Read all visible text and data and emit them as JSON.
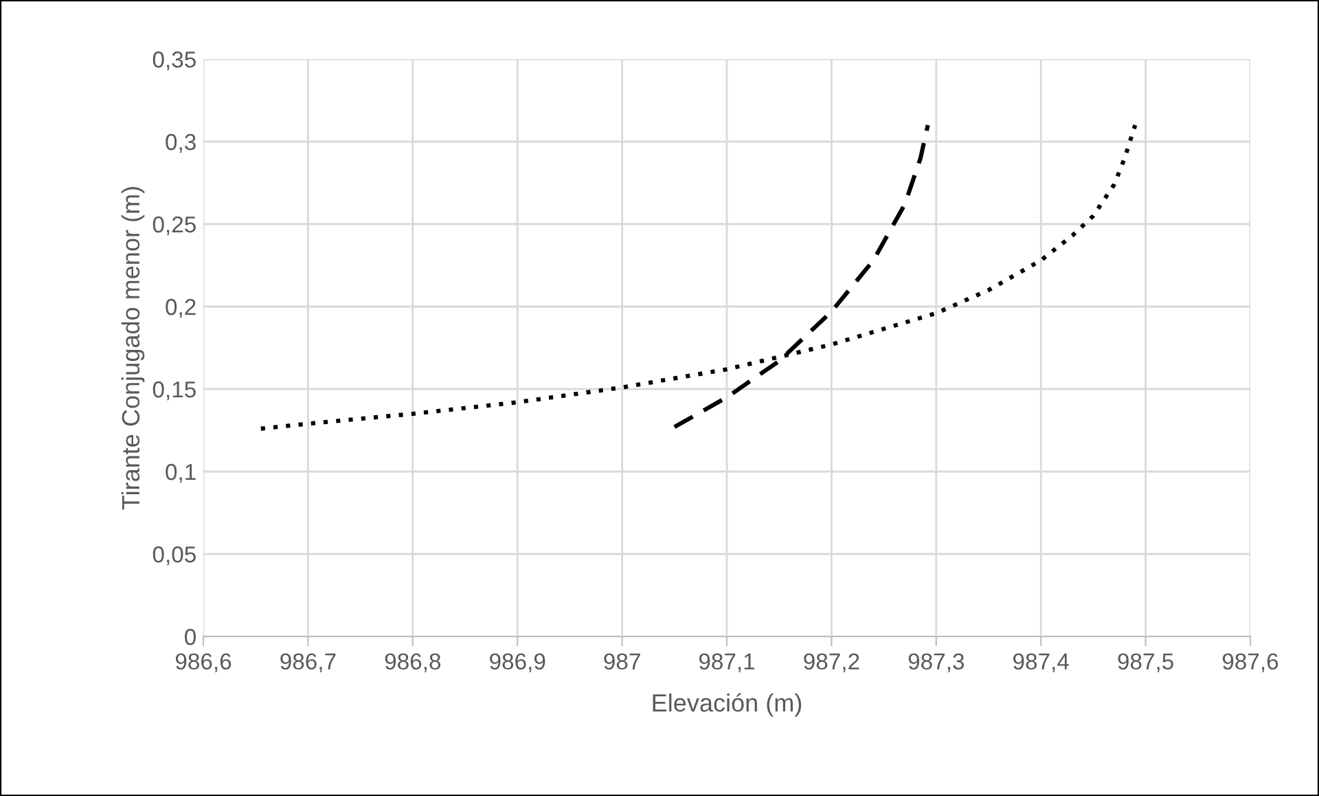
{
  "chart_data": {
    "type": "line",
    "xlabel": "Elevación (m)",
    "ylabel": "Tirante Conjugado menor (m)",
    "xlim": [
      986.6,
      987.6
    ],
    "xticks": [
      {
        "value": 986.6,
        "label": "986,6"
      },
      {
        "value": 986.7,
        "label": "986,7"
      },
      {
        "value": 986.8,
        "label": "986,8"
      },
      {
        "value": 986.9,
        "label": "986,9"
      },
      987,
      {
        "value": 987.1,
        "label": "987,1"
      },
      {
        "value": 987.2,
        "label": "987,2"
      },
      {
        "value": 987.3,
        "label": "987,3"
      },
      {
        "value": 987.4,
        "label": "987,4"
      },
      {
        "value": 987.5,
        "label": "987,5"
      },
      {
        "value": 987.6,
        "label": "987,6"
      }
    ],
    "ylim": [
      0,
      0.35
    ],
    "yticks": [
      0,
      {
        "value": 0.05,
        "label": "0,05"
      },
      {
        "value": 0.1,
        "label": "0,1"
      },
      {
        "value": 0.15,
        "label": "0,15"
      },
      {
        "value": 0.2,
        "label": "0,2"
      },
      {
        "value": 0.25,
        "label": "0,25"
      },
      {
        "value": 0.3,
        "label": "0,3"
      },
      {
        "value": 0.35,
        "label": "0,35"
      }
    ],
    "grid": true,
    "marker": "none",
    "series": [
      {
        "color": "#000000",
        "line_style": "dotted",
        "x": [
          986.655,
          986.7,
          986.8,
          986.9,
          987.0,
          987.1,
          987.2,
          987.3,
          987.35,
          987.4,
          987.43,
          987.45,
          987.47,
          987.48,
          987.49
        ],
        "values": [
          0.126,
          0.129,
          0.135,
          0.142,
          0.151,
          0.162,
          0.177,
          0.196,
          0.21,
          0.228,
          0.243,
          0.255,
          0.274,
          0.29,
          0.31
        ]
      },
      {
        "color": "#000000",
        "line_style": "dashed",
        "x": [
          987.05,
          987.1,
          987.15,
          987.2,
          987.24,
          987.27,
          987.285,
          987.292
        ],
        "values": [
          0.127,
          0.145,
          0.167,
          0.197,
          0.228,
          0.262,
          0.29,
          0.31
        ]
      }
    ]
  }
}
